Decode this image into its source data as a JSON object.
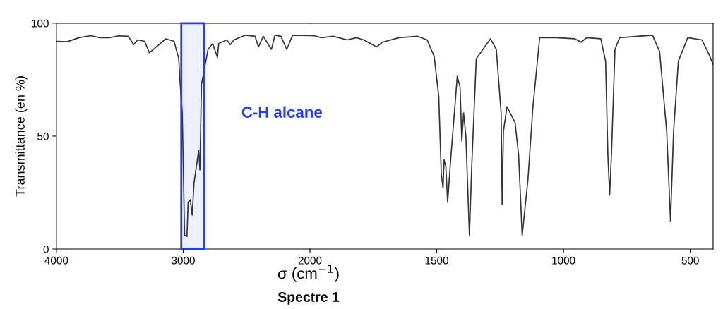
{
  "chart_data": [
    {
      "type": "line",
      "title": "Spectre 1",
      "xlabel": "σ (cm$^{−1}$)",
      "ylabel": "Transmittance (en %)",
      "x": [
        4000,
        3915,
        3822,
        3730,
        3656,
        3582,
        3507,
        3433,
        3391,
        3359,
        3304,
        3267,
        3211,
        3137,
        3072,
        3035,
        3026,
        3007,
        2989,
        2970,
        2961,
        2943,
        2929,
        2915,
        2878,
        2868,
        2856,
        2832,
        2804,
        2767,
        2730,
        2720,
        2656,
        2628,
        2600,
        2507,
        2433,
        2406,
        2368,
        2304,
        2276,
        2229,
        2183,
        2137,
        2000
      ],
      "series": [
        {
          "color": "#333333",
          "values": [
            92,
            91.8,
            93.6,
            94.5,
            93.6,
            93.6,
            94.4,
            94.2,
            90.5,
            92.6,
            92,
            86.9,
            89.5,
            93.1,
            92,
            84.3,
            75,
            60,
            6.1,
            5.6,
            20.7,
            21.8,
            15,
            29,
            43.6,
            35,
            72.8,
            80,
            88.4,
            91,
            84.8,
            91,
            92.6,
            90.5,
            92.6,
            94.7,
            94.2,
            89.5,
            94.2,
            88.4,
            94.7,
            94.2,
            88.4,
            94.7,
            94.5
          ]
        }
      ],
      "xlim": [
        4000,
        2000
      ],
      "xticks": [
        4000,
        3000,
        2000
      ],
      "ylim": [
        0,
        100
      ],
      "yticks": [
        0,
        50,
        100
      ],
      "bands": [
        {
          "axis": "x",
          "from": 3015,
          "to": 2835,
          "label": "C-H alcane",
          "color": "#1f3cff"
        }
      ],
      "grid": false,
      "legend": false,
      "marker": "none",
      "line_style": "solid"
    },
    {
      "type": "line",
      "x": [
        2000,
        1982,
        1955,
        1908,
        1853,
        1816,
        1788,
        1737,
        1714,
        1649,
        1575,
        1538,
        1510,
        1492,
        1482,
        1475,
        1471,
        1464,
        1457,
        1445,
        1419,
        1408,
        1401,
        1394,
        1385,
        1371,
        1362,
        1344,
        1288,
        1265,
        1246,
        1242,
        1237,
        1223,
        1191,
        1177,
        1163,
        1140,
        1121,
        1094,
        1029,
        955,
        931,
        908,
        853,
        834,
        825,
        818,
        811,
        797,
        779,
        705,
        649,
        621,
        593,
        578,
        566,
        547,
        510,
        454,
        427,
        410
      ],
      "series": [
        {
          "color": "#333333",
          "values": [
            94.5,
            94.4,
            93.6,
            94.2,
            92.6,
            93.6,
            92.6,
            89.5,
            91.6,
            93.6,
            94.2,
            92.6,
            85.3,
            67.6,
            33.2,
            27,
            39.5,
            36.4,
            20.7,
            39.5,
            76.5,
            71.8,
            47.8,
            60.3,
            49.9,
            6.1,
            36.4,
            84.3,
            93.1,
            88.4,
            60.3,
            19.7,
            52,
            63,
            56,
            41.6,
            6.1,
            31,
            62.4,
            93.6,
            93.6,
            93.1,
            91.6,
            93.6,
            93.1,
            83.2,
            41.6,
            23.9,
            41.6,
            88.4,
            93.6,
            94.2,
            94.7,
            87.4,
            52,
            12.4,
            52,
            83.2,
            93.6,
            92.6,
            86.4,
            81.7
          ]
        }
      ],
      "xlim": [
        2000,
        410
      ],
      "xticks": [
        1500,
        1000,
        500
      ],
      "ylim": [
        0,
        100
      ],
      "yticks": [
        0,
        50,
        100
      ],
      "tick_labels": "x",
      "grid": false,
      "legend": false,
      "marker": "none",
      "line_style": "solid"
    }
  ]
}
